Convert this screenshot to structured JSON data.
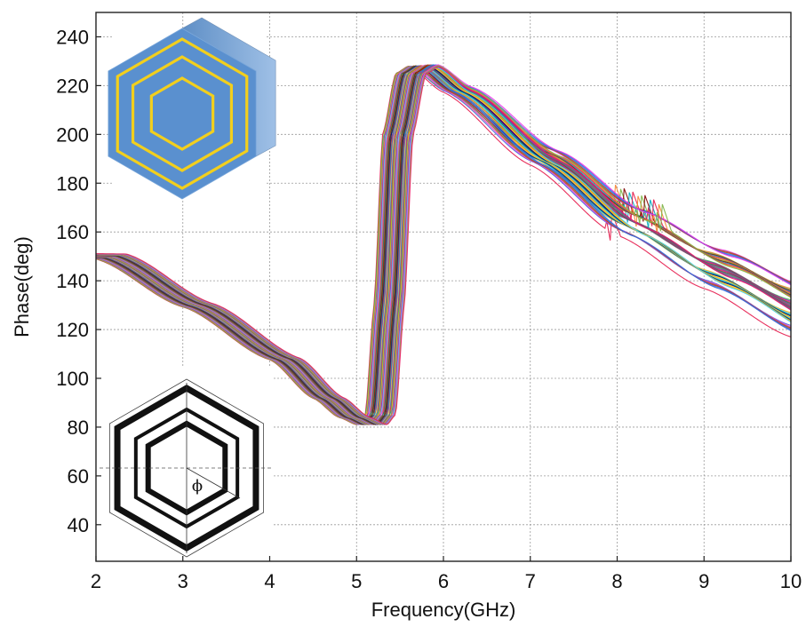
{
  "chart_data": {
    "type": "line",
    "title": "",
    "xlabel": "Frequency(GHz)",
    "ylabel": "Phase(deg)",
    "xlim": [
      2,
      10
    ],
    "ylim": [
      25,
      250
    ],
    "xticks": [
      "2",
      "3",
      "4",
      "5",
      "6",
      "7",
      "8",
      "9",
      "10"
    ],
    "yticks": [
      "40",
      "60",
      "80",
      "100",
      "120",
      "140",
      "160",
      "180",
      "200",
      "220",
      "240"
    ],
    "grid": true,
    "legend": "none",
    "series_family": {
      "count": 50,
      "base_points": [
        [
          2.0,
          150
        ],
        [
          3.0,
          130
        ],
        [
          4.0,
          108
        ],
        [
          4.5,
          92
        ],
        [
          4.8,
          84
        ],
        [
          5.0,
          81
        ],
        [
          5.1,
          85
        ],
        [
          5.2,
          130
        ],
        [
          5.3,
          200
        ],
        [
          5.45,
          225
        ],
        [
          5.6,
          228
        ],
        [
          6.0,
          218
        ],
        [
          7.0,
          190
        ],
        [
          8.0,
          163
        ],
        [
          9.0,
          143
        ],
        [
          10.0,
          125
        ]
      ],
      "frequency_shift_range_ghz": [
        0.0,
        0.35
      ],
      "high_frequency_spread_deg": [
        -8,
        12
      ],
      "resonance_glitch_region_ghz": [
        7.9,
        9.1
      ]
    },
    "annotations": {
      "inset_3d_unit_cell": "hexagonal unit cell with nested hexagonal rings (3D view)",
      "inset_top_view_symbol": "ϕ"
    }
  }
}
